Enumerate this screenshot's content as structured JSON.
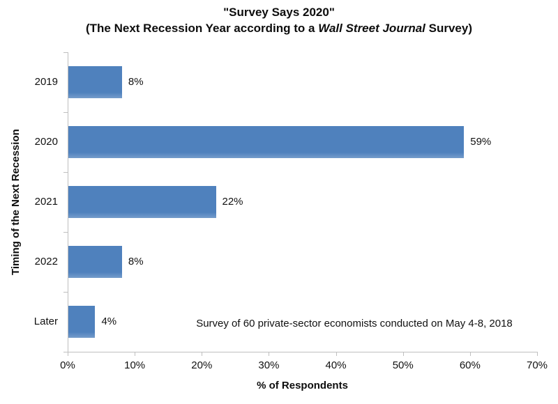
{
  "title": {
    "line1": "\"Survey Says 2020\"",
    "line2_prefix": "(The Next Recession Year according to a ",
    "line2_italic": "Wall Street Journal",
    "line2_suffix": " Survey)"
  },
  "chart_data": {
    "type": "bar",
    "orientation": "horizontal",
    "title": "\"Survey Says 2020\" (The Next Recession Year according to a Wall Street Journal Survey)",
    "categories": [
      "2019",
      "2020",
      "2021",
      "2022",
      "Later"
    ],
    "values": [
      8,
      59,
      22,
      8,
      4
    ],
    "value_labels": [
      "8%",
      "59%",
      "22%",
      "8%",
      "4%"
    ],
    "xlabel": "% of Respondents",
    "ylabel": "Timing of the Next Recession",
    "xlim": [
      0,
      70
    ],
    "x_tick_step": 10,
    "x_tick_labels": [
      "0%",
      "10%",
      "20%",
      "30%",
      "40%",
      "50%",
      "60%",
      "70%"
    ],
    "grid": false,
    "legend": false,
    "bar_color": "#4F81BD",
    "axis_color": "#BFBFBF",
    "annotation": "Survey of 60 private-sector economists conducted on May 4-8, 2018"
  }
}
